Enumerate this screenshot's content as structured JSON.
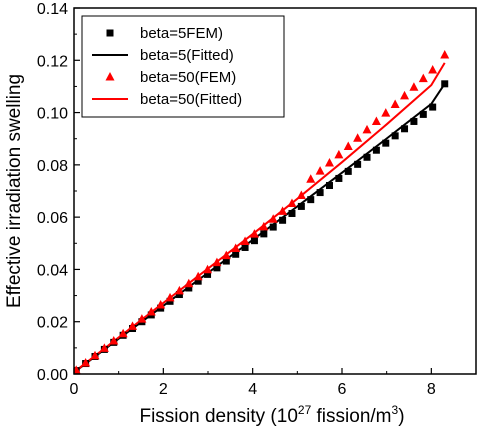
{
  "chart_data": {
    "type": "scatter",
    "xlabel_main": "Fission density (10",
    "xlabel_sup": "27",
    "xlabel_end": " fission/m",
    "xlabel_sup2": "3",
    "xlabel_close": ")",
    "ylabel": "Effective irradiation swelling",
    "xlim": [
      0,
      9
    ],
    "ylim": [
      0,
      0.14
    ],
    "xticks": [
      "0",
      "2",
      "4",
      "6",
      "8"
    ],
    "xtick_values": [
      0,
      2,
      4,
      6,
      8
    ],
    "yticks": [
      "0.00",
      "0.02",
      "0.04",
      "0.06",
      "0.08",
      "0.10",
      "0.12",
      "0.14"
    ],
    "ytick_values": [
      0,
      0.02,
      0.04,
      0.06,
      0.08,
      0.1,
      0.12,
      0.14
    ],
    "legend_placement": "top-left",
    "series": [
      {
        "name": "beta=5FEM)",
        "kind": "points",
        "marker": "square",
        "color": "#000000",
        "x": [
          0.05,
          0.26,
          0.47,
          0.68,
          0.89,
          1.1,
          1.31,
          1.52,
          1.73,
          1.94,
          2.15,
          2.36,
          2.57,
          2.78,
          2.99,
          3.2,
          3.41,
          3.62,
          3.83,
          4.04,
          4.25,
          4.46,
          4.67,
          4.88,
          5.09,
          5.3,
          5.51,
          5.72,
          5.93,
          6.14,
          6.35,
          6.56,
          6.77,
          6.98,
          7.19,
          7.4,
          7.61,
          7.82,
          8.03,
          8.3
        ],
        "y": [
          0.0013,
          0.004,
          0.0067,
          0.0094,
          0.0121,
          0.0148,
          0.0174,
          0.02,
          0.0226,
          0.0252,
          0.0278,
          0.0304,
          0.0329,
          0.0355,
          0.0381,
          0.0406,
          0.0432,
          0.0458,
          0.0484,
          0.051,
          0.0536,
          0.0562,
          0.0588,
          0.0614,
          0.0641,
          0.0667,
          0.0694,
          0.0721,
          0.0748,
          0.0775,
          0.0802,
          0.0829,
          0.0856,
          0.0883,
          0.0911,
          0.0938,
          0.0966,
          0.0993,
          0.1021,
          0.111
        ]
      },
      {
        "name": "beta=5(Fitted)",
        "kind": "line",
        "color": "#000000",
        "x": [
          0,
          1,
          2,
          3,
          4,
          5,
          6,
          7,
          8,
          8.3
        ],
        "y": [
          0.0006,
          0.0135,
          0.0261,
          0.0387,
          0.0513,
          0.0641,
          0.077,
          0.0901,
          0.1033,
          0.111
        ]
      },
      {
        "name": "beta=50(FEM)",
        "kind": "points",
        "marker": "triangle",
        "color": "#ff0000",
        "x": [
          0.05,
          0.26,
          0.47,
          0.68,
          0.89,
          1.1,
          1.31,
          1.52,
          1.73,
          1.94,
          2.15,
          2.36,
          2.57,
          2.78,
          2.99,
          3.2,
          3.41,
          3.62,
          3.83,
          4.04,
          4.25,
          4.46,
          4.67,
          4.88,
          5.09,
          5.3,
          5.51,
          5.72,
          5.93,
          6.14,
          6.35,
          6.56,
          6.77,
          6.98,
          7.19,
          7.4,
          7.61,
          7.82,
          8.03,
          8.3
        ],
        "y": [
          0.0014,
          0.0042,
          0.007,
          0.0098,
          0.0126,
          0.0154,
          0.0182,
          0.021,
          0.0237,
          0.0264,
          0.0291,
          0.0318,
          0.0345,
          0.0372,
          0.0399,
          0.0426,
          0.0453,
          0.048,
          0.0507,
          0.0535,
          0.0563,
          0.0592,
          0.0622,
          0.0652,
          0.0683,
          0.0745,
          0.0776,
          0.0807,
          0.0838,
          0.087,
          0.0902,
          0.0934,
          0.0966,
          0.0998,
          0.1031,
          0.1064,
          0.1097,
          0.113,
          0.1163,
          0.122
        ]
      },
      {
        "name": "beta=50(Fitted)",
        "kind": "line",
        "color": "#ff0000",
        "x": [
          0,
          1,
          2,
          3,
          4,
          5,
          6,
          7,
          8,
          8.3
        ],
        "y": [
          0.0007,
          0.014,
          0.0272,
          0.0403,
          0.0535,
          0.067,
          0.081,
          0.0955,
          0.1105,
          0.119
        ]
      }
    ]
  }
}
